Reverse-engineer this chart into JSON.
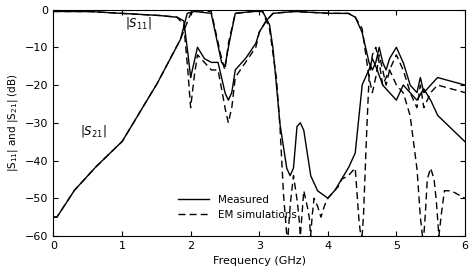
{
  "xlabel": "Frequency (GHz)",
  "ylabel": "|S$_{11}$| and |S$_{21}$| (dB)",
  "xlim": [
    0,
    6
  ],
  "ylim": [
    -60,
    0
  ],
  "yticks": [
    0,
    -10,
    -20,
    -30,
    -40,
    -50,
    -60
  ],
  "xticks": [
    0,
    1,
    2,
    3,
    4,
    5,
    6
  ],
  "legend_entries": [
    "Measured",
    "EM simulations"
  ],
  "line_color": "#000000",
  "background_color": "#ffffff"
}
